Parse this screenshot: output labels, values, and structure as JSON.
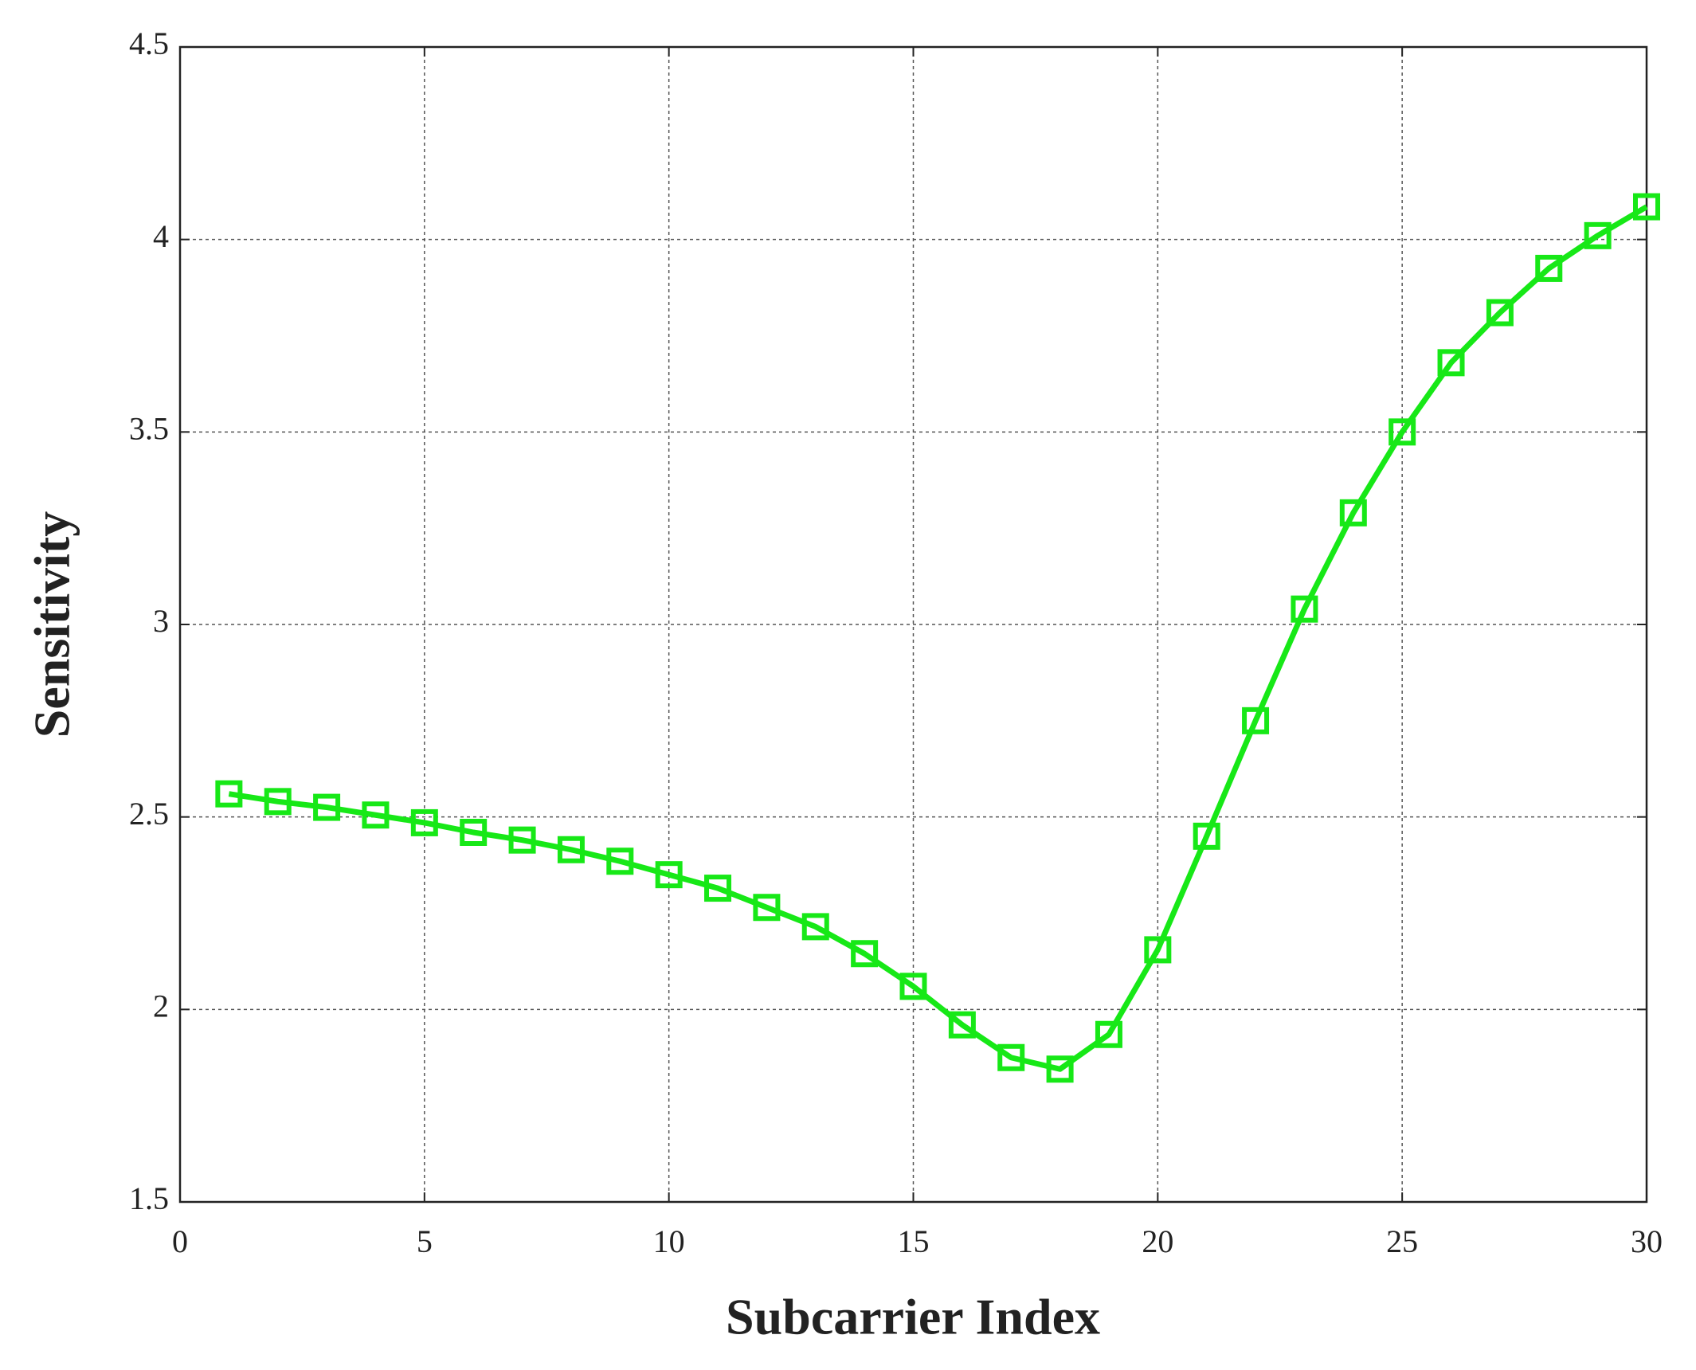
{
  "chart_data": {
    "type": "line",
    "xlabel": "Subcarrier Index",
    "ylabel": "Sensitivity",
    "x": [
      1,
      2,
      3,
      4,
      5,
      6,
      7,
      8,
      9,
      10,
      11,
      12,
      13,
      14,
      15,
      16,
      17,
      18,
      19,
      20,
      21,
      22,
      23,
      24,
      25,
      26,
      27,
      28,
      29,
      30
    ],
    "series": [
      {
        "color": "#17e817",
        "marker": "square",
        "values": [
          2.56,
          2.54,
          2.525,
          2.505,
          2.485,
          2.46,
          2.44,
          2.415,
          2.385,
          2.35,
          2.315,
          2.265,
          2.215,
          2.145,
          2.06,
          1.96,
          1.875,
          1.845,
          1.935,
          2.155,
          2.45,
          2.75,
          3.04,
          3.29,
          3.5,
          3.68,
          3.81,
          3.925,
          4.01,
          4.085
        ]
      }
    ],
    "xlim": [
      0,
      30
    ],
    "xticks": [
      0,
      5,
      10,
      15,
      20,
      25,
      30
    ],
    "ylim": [
      1.5,
      4.5
    ],
    "yticks": [
      1.5,
      2,
      2.5,
      3,
      3.5,
      4,
      4.5
    ],
    "grid": true
  }
}
